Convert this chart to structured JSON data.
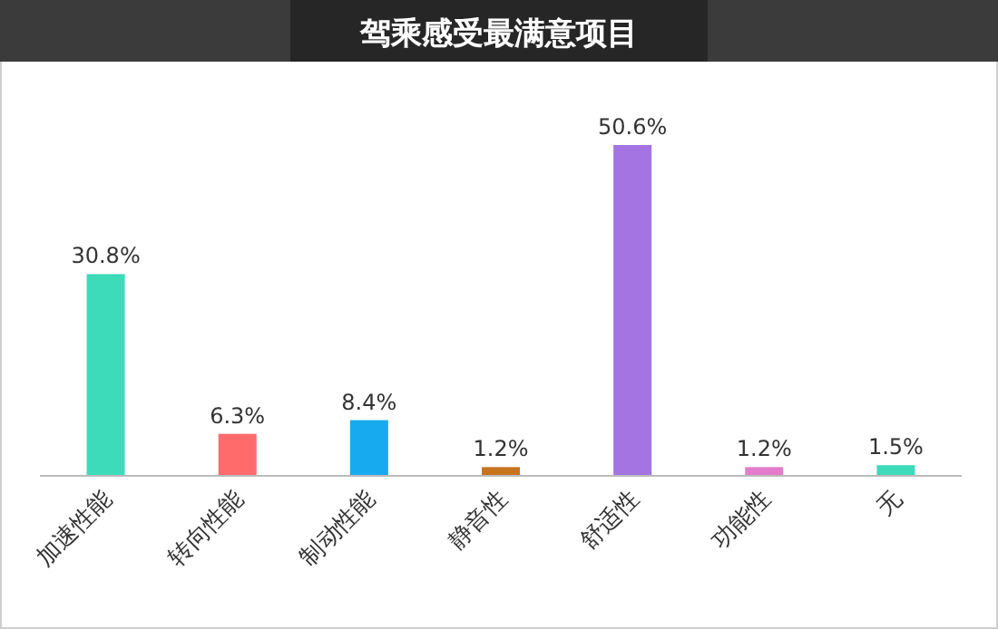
{
  "chart_data": {
    "type": "bar",
    "title": "驾乘感受最满意项目",
    "categories": [
      "加速性能",
      "转向性能",
      "制动性能",
      "静音性",
      "舒适性",
      "功能性",
      "无"
    ],
    "values": [
      30.8,
      6.3,
      8.4,
      1.2,
      50.6,
      1.2,
      1.5
    ],
    "value_labels": [
      "30.8%",
      "6.3%",
      "8.4%",
      "1.2%",
      "50.6%",
      "1.2%",
      "1.5%"
    ],
    "colors": [
      "#3ddbb9",
      "#ff6b6b",
      "#18aaee",
      "#c8741e",
      "#a374e2",
      "#e27ccb",
      "#3ddbb9"
    ]
  }
}
